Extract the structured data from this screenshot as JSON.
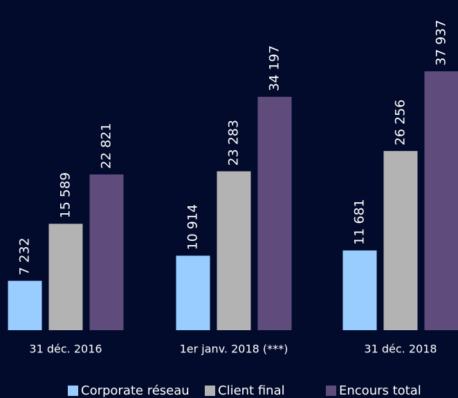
{
  "chart_data": {
    "type": "bar",
    "categories": [
      "31 déc. 2016",
      "1er janv. 2018 (***)",
      "31 déc. 2018"
    ],
    "series": [
      {
        "name": "Corporate réseau",
        "color": "#99ccff",
        "values": [
          7232,
          10914,
          11681
        ],
        "value_labels": [
          "7 232",
          "10 914",
          "11 681"
        ]
      },
      {
        "name": "Client final",
        "color": "#b3b3b3",
        "values": [
          15589,
          23283,
          26256
        ],
        "value_labels": [
          "15 589",
          "23 283",
          "26 256"
        ]
      },
      {
        "name": "Encours total",
        "color": "#5f4b7c",
        "values": [
          22821,
          34197,
          37937
        ],
        "value_labels": [
          "22 821",
          "34 197",
          "37 937"
        ]
      }
    ]
  }
}
